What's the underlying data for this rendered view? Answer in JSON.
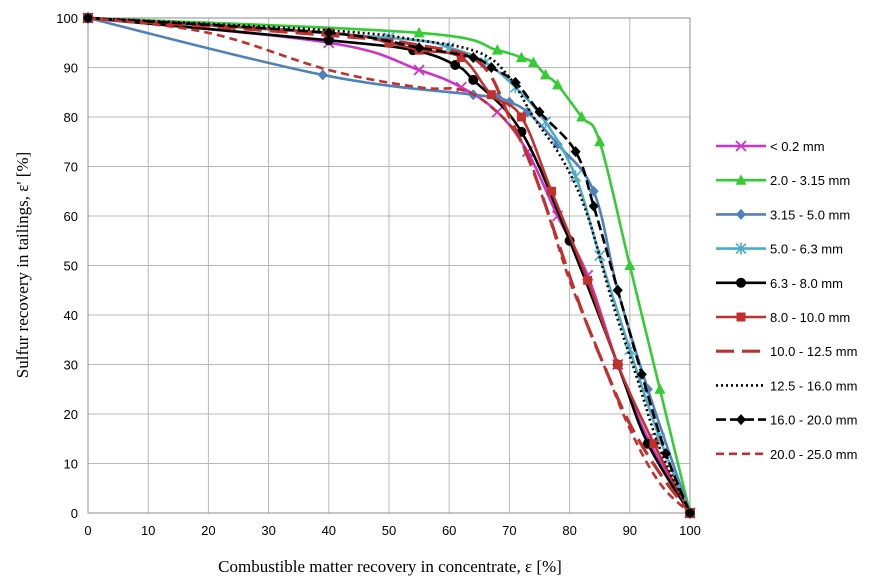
{
  "chart_data": {
    "type": "line",
    "title": "",
    "xlabel": "Combustible matter recovery in concentrate, ε [%]",
    "ylabel": "Sulfur recovery in tailings, ε' [%]",
    "xlim": [
      0,
      100
    ],
    "ylim": [
      0,
      100
    ],
    "xticks": [
      "0",
      "10",
      "20",
      "30",
      "40",
      "50",
      "60",
      "70",
      "80",
      "90",
      "100"
    ],
    "yticks": [
      "0",
      "10",
      "20",
      "30",
      "40",
      "50",
      "60",
      "70",
      "80",
      "90",
      "100"
    ],
    "grid": true,
    "legend_position": "right",
    "series": [
      {
        "name": "< 0.2 mm",
        "color": "#cc33cc",
        "marker": "x",
        "dash": "",
        "points": [
          [
            0,
            100
          ],
          [
            40,
            95
          ],
          [
            55,
            89.5
          ],
          [
            62,
            86
          ],
          [
            68,
            81
          ],
          [
            73,
            73
          ],
          [
            78,
            60
          ],
          [
            83,
            48
          ],
          [
            88,
            30
          ],
          [
            93,
            15
          ],
          [
            100,
            0
          ]
        ]
      },
      {
        "name": "2.0 - 3.15 mm",
        "color": "#33cc33",
        "marker": "triangle",
        "dash": "",
        "points": [
          [
            0,
            100
          ],
          [
            55,
            97
          ],
          [
            68,
            93.5
          ],
          [
            72,
            92
          ],
          [
            74,
            91
          ],
          [
            76,
            88.5
          ],
          [
            78,
            86.5
          ],
          [
            82,
            80
          ],
          [
            85,
            75
          ],
          [
            90,
            50
          ],
          [
            95,
            25
          ],
          [
            100,
            0
          ]
        ]
      },
      {
        "name": "3.15 - 5.0 mm",
        "color": "#4f81bd",
        "marker": "diamond",
        "dash": "",
        "points": [
          [
            0,
            100
          ],
          [
            39,
            88.5
          ],
          [
            64,
            84.5
          ],
          [
            68,
            84
          ],
          [
            70,
            83
          ],
          [
            73,
            81
          ],
          [
            78,
            74.5
          ],
          [
            84,
            65
          ],
          [
            88,
            45
          ],
          [
            93,
            25
          ],
          [
            100,
            0
          ]
        ]
      },
      {
        "name": "5.0 - 6.3 mm",
        "color": "#4bacc6",
        "marker": "asterisk",
        "dash": "",
        "points": [
          [
            0,
            100
          ],
          [
            50,
            96
          ],
          [
            60,
            94
          ],
          [
            66,
            91
          ],
          [
            71,
            86
          ],
          [
            76,
            79
          ],
          [
            81,
            68
          ],
          [
            85,
            52
          ],
          [
            90,
            33
          ],
          [
            95,
            15
          ],
          [
            100,
            0
          ]
        ]
      },
      {
        "name": "6.3 - 8.0 mm",
        "color": "#000000",
        "marker": "circle",
        "dash": "",
        "points": [
          [
            0,
            100
          ],
          [
            40,
            95.5
          ],
          [
            54,
            93.5
          ],
          [
            61,
            90.5
          ],
          [
            64,
            87.5
          ],
          [
            72,
            77
          ],
          [
            80,
            55
          ],
          [
            88,
            30
          ],
          [
            93,
            14
          ],
          [
            100,
            0
          ]
        ]
      },
      {
        "name": "8.0 - 10.0 mm",
        "color": "#c0302c",
        "marker": "square",
        "dash": "",
        "points": [
          [
            0,
            100
          ],
          [
            40,
            97
          ],
          [
            50,
            95
          ],
          [
            55,
            93.5
          ],
          [
            62,
            92
          ],
          [
            67,
            84.5
          ],
          [
            72,
            80
          ],
          [
            77,
            65
          ],
          [
            83,
            47
          ],
          [
            88,
            30
          ],
          [
            94,
            14
          ],
          [
            100,
            0
          ]
        ]
      },
      {
        "name": "10.0 - 12.5 mm",
        "color": "#c0302c",
        "marker": "none",
        "dash": "18,8",
        "points": [
          [
            0,
            100
          ],
          [
            40,
            96.5
          ],
          [
            55,
            94.5
          ],
          [
            65,
            91
          ],
          [
            70,
            80
          ],
          [
            74,
            69
          ],
          [
            78,
            55
          ],
          [
            82,
            41
          ],
          [
            86,
            29
          ],
          [
            90,
            18
          ],
          [
            95,
            8
          ],
          [
            100,
            0
          ]
        ]
      },
      {
        "name": "12.5 - 16.0 mm",
        "color": "#000000",
        "marker": "none",
        "dash": "2,3",
        "points": [
          [
            0,
            100
          ],
          [
            40,
            97.5
          ],
          [
            55,
            95.5
          ],
          [
            65,
            93
          ],
          [
            70,
            88
          ],
          [
            74,
            80
          ],
          [
            79,
            71
          ],
          [
            83,
            60
          ],
          [
            87,
            43
          ],
          [
            91,
            28
          ],
          [
            95,
            13
          ],
          [
            100,
            0
          ]
        ]
      },
      {
        "name": "16.0 - 20.0 mm",
        "color": "#000000",
        "marker": "diamond",
        "dash": "10,4",
        "points": [
          [
            0,
            100
          ],
          [
            40,
            97
          ],
          [
            55,
            94
          ],
          [
            64,
            92
          ],
          [
            67,
            90
          ],
          [
            71,
            87
          ],
          [
            75,
            81
          ],
          [
            81,
            73
          ],
          [
            84,
            62
          ],
          [
            88,
            45
          ],
          [
            92,
            28
          ],
          [
            96,
            12
          ],
          [
            100,
            0
          ]
        ]
      },
      {
        "name": "20.0 - 25.0 mm",
        "color": "#c0302c",
        "marker": "none",
        "dash": "8,5",
        "points": [
          [
            0,
            100
          ],
          [
            20,
            97
          ],
          [
            40,
            89.5
          ],
          [
            55,
            86
          ],
          [
            62,
            85.5
          ],
          [
            67,
            82
          ],
          [
            72,
            75
          ],
          [
            76,
            62
          ],
          [
            80,
            47
          ],
          [
            85,
            32
          ],
          [
            90,
            17
          ],
          [
            95,
            6
          ],
          [
            100,
            0
          ]
        ]
      }
    ]
  }
}
